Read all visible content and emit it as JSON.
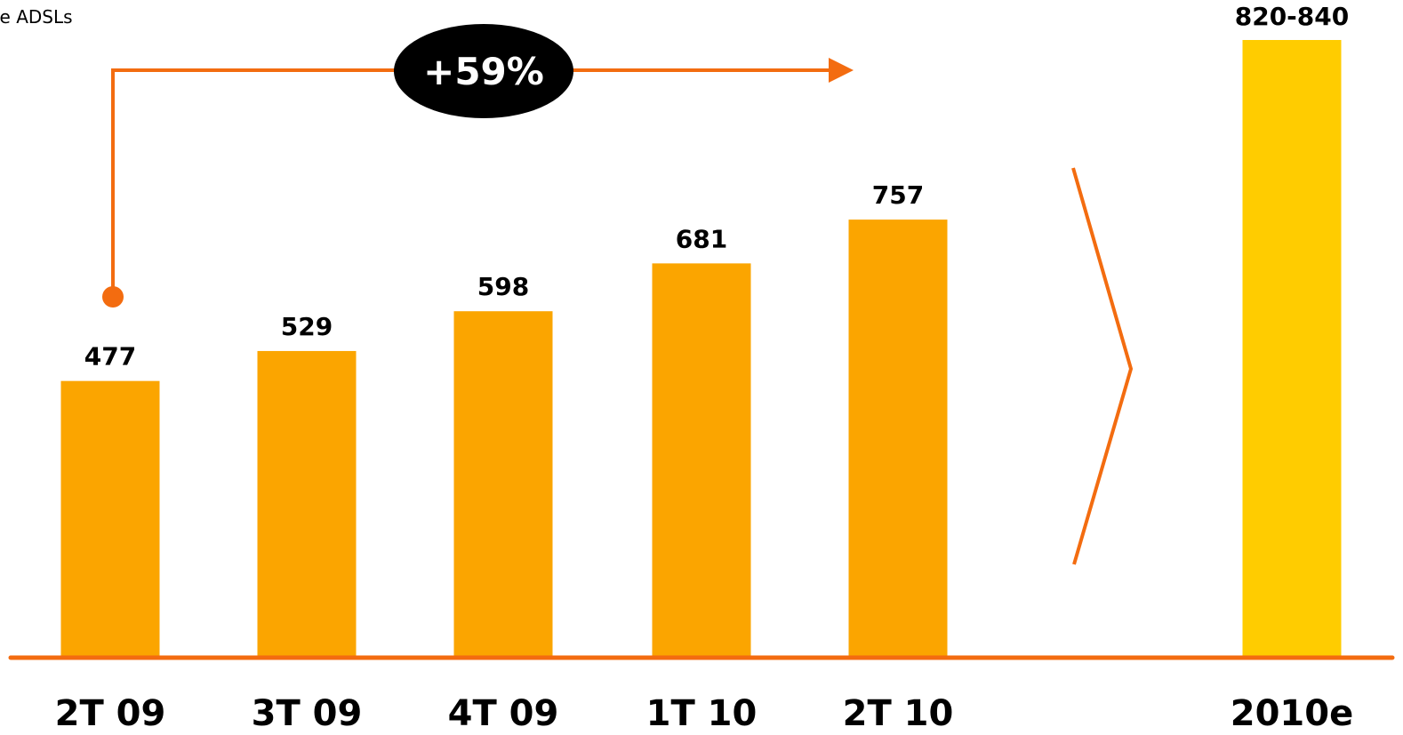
{
  "partial_label": "le ADSLs",
  "chart_data": {
    "type": "bar",
    "categories": [
      "2T 09",
      "3T 09",
      "4T 09",
      "1T 10",
      "2T 10",
      "2010e"
    ],
    "values": [
      477,
      529,
      598,
      681,
      757,
      830
    ],
    "value_labels": [
      "477",
      "529",
      "598",
      "681",
      "757",
      "820-840"
    ],
    "forecast_range": [
      820,
      840
    ],
    "growth_annotation": "+59%",
    "title": "",
    "xlabel": "",
    "ylabel": "",
    "grid": false,
    "legend": "none",
    "colors": {
      "actual_bar": "#FBA500",
      "forecast_bar": "#FFCC00",
      "accent_line": "#F36C10",
      "annotation_bg": "#000000",
      "annotation_text": "#FFFFFF"
    }
  }
}
